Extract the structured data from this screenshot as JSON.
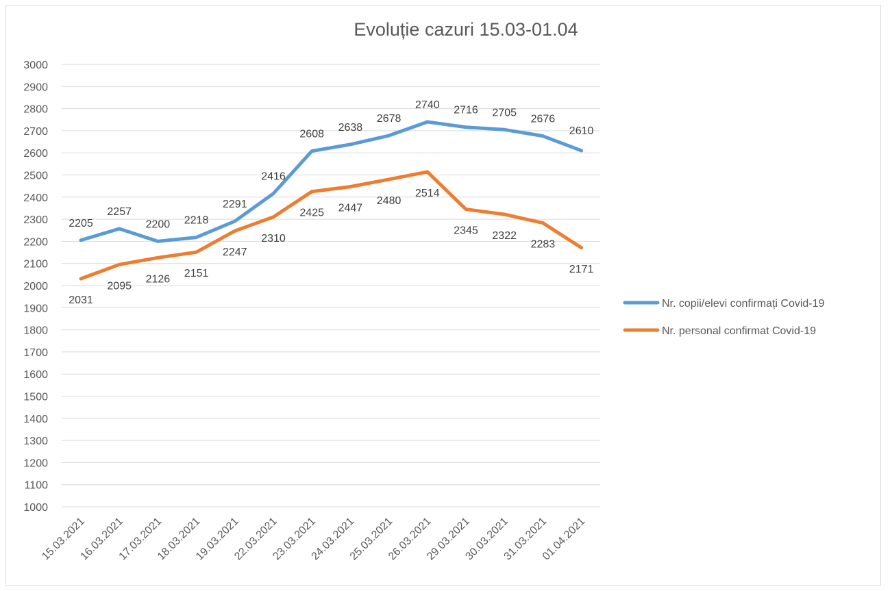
{
  "chart_data": {
    "type": "line",
    "title": "Evoluție cazuri 15.03-01.04",
    "categories": [
      "15.03.2021",
      "16.03.2021",
      "17.03.2021",
      "18.03.2021",
      "19.03.2021",
      "22.03.2021",
      "23.03.2021",
      "24.03.2021",
      "25.03.2021",
      "26.03.2021",
      "29.03.2021",
      "30.03.2021",
      "31.03.2021",
      "01.04.2021"
    ],
    "series": [
      {
        "name": "Nr. copii/elevi confirmați Covid-19",
        "color": "#5b9bd5",
        "values": [
          2205,
          2257,
          2200,
          2218,
          2291,
          2416,
          2608,
          2638,
          2678,
          2740,
          2716,
          2705,
          2676,
          2610
        ],
        "labels": [
          "2205",
          "2257",
          "2200",
          "2218",
          "2291",
          "2416",
          "2608",
          "2638",
          "2678",
          "2740",
          "2716",
          "2705",
          "2676",
          "2610"
        ]
      },
      {
        "name": "Nr. personal confirmat Covid-19",
        "color": "#ed7d31",
        "values": [
          2031,
          2095,
          2126,
          2151,
          2247,
          2310,
          2425,
          2447,
          2480,
          2514,
          2345,
          2322,
          2283,
          2171
        ],
        "labels": [
          "2031",
          "2095",
          "2126",
          "2151",
          "2247",
          "2310",
          "2425",
          "2447",
          "2480",
          "2514",
          "2345",
          "2322",
          "2283",
          "2171"
        ]
      }
    ],
    "ylim": [
      1000,
      3000
    ],
    "yticks": [
      "1000",
      "1100",
      "1200",
      "1300",
      "1400",
      "1500",
      "1600",
      "1700",
      "1800",
      "1900",
      "2000",
      "2100",
      "2200",
      "2300",
      "2400",
      "2500",
      "2600",
      "2700",
      "2800",
      "2900",
      "3000"
    ],
    "xlabel": "",
    "ylabel": "",
    "grid": true,
    "legend_position": "right"
  }
}
